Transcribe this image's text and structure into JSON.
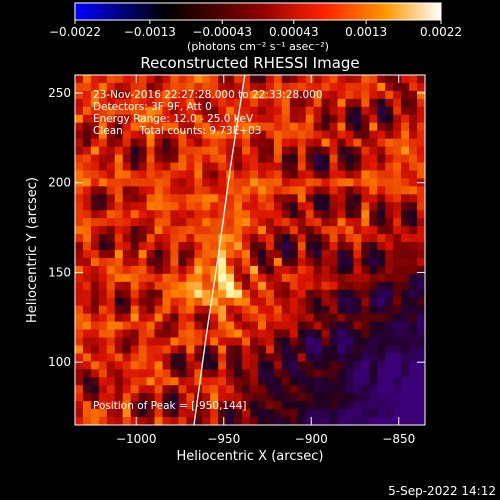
{
  "chart_data": {
    "type": "heatmap",
    "title": "Reconstructed RHESSI Image",
    "xlabel": "Heliocentric X (arcsec)",
    "ylabel": "Heliocentric Y (arcsec)",
    "xlim": [
      -1035,
      -835
    ],
    "ylim": [
      65,
      260
    ],
    "x_ticks": [
      -1000,
      -950,
      -900,
      -850
    ],
    "x_tick_labels": [
      "−1000",
      "−950",
      "−900",
      "−850"
    ],
    "y_ticks": [
      100,
      150,
      200,
      250
    ],
    "y_tick_labels": [
      "100",
      "150",
      "200",
      "250"
    ],
    "grid": false,
    "colorbar": {
      "orientation": "horizontal",
      "position": "top",
      "range": [
        -0.0022,
        0.0022
      ],
      "tick_values": [
        -0.0022,
        -0.0013,
        -0.00043,
        0.00043,
        0.0013,
        0.0022
      ],
      "tick_labels": [
        "−0.0022",
        "−0.0013",
        "−0.00043",
        "0.00043",
        "0.0013",
        "0.0022"
      ],
      "unit_label": "(photons cm⁻² s⁻¹ asec⁻²)",
      "colors": [
        "#0000ff",
        "#000000",
        "#8a0000",
        "#ff2200",
        "#ff9900",
        "#ffffff"
      ]
    },
    "annotations": [
      "23-Nov-2016 22:27:28.000 to 22:33:28.000",
      "Detectors: 3F 9F, Att 0",
      "Energy Range: 12.0 - 25.0 keV",
      "Clean     Total counts: 9.73E+03",
      "Position of Peak = [-950,144]"
    ],
    "peak": {
      "x": -950,
      "y": 144
    },
    "limb_curve": {
      "x": [
        -967,
        -960,
        -953,
        -946,
        -938
      ],
      "y": [
        65,
        115,
        160,
        210,
        260
      ]
    },
    "limb_color": "#ffffff",
    "timestamp": "5-Sep-2022 14:12"
  }
}
